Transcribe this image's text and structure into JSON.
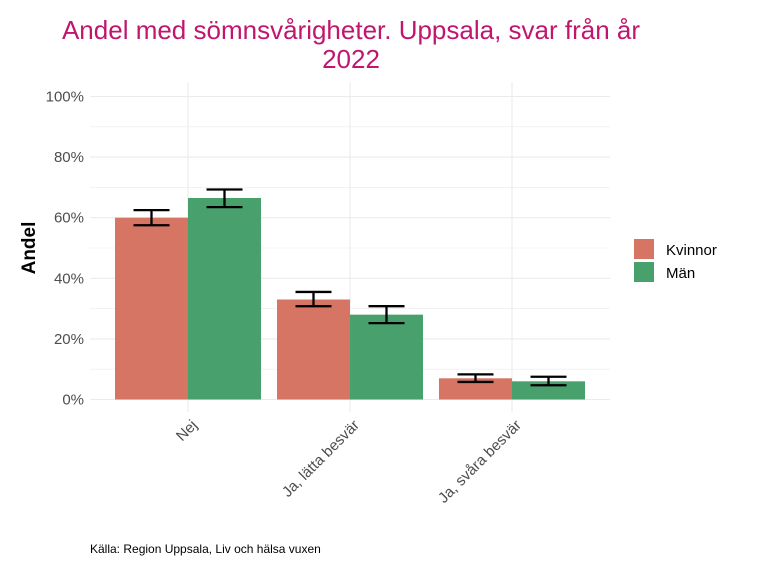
{
  "chart_data": {
    "type": "bar",
    "title_lines": [
      "Andel med sömnsvårigheter. Uppsala, svar från år",
      "2022"
    ],
    "xlabel": "",
    "ylabel": "Andel",
    "ylim": [
      0,
      1.0
    ],
    "y_ticks": [
      {
        "value": 0.0,
        "label": "0%"
      },
      {
        "value": 0.2,
        "label": "20%"
      },
      {
        "value": 0.4,
        "label": "40%"
      },
      {
        "value": 0.6,
        "label": "60%"
      },
      {
        "value": 0.8,
        "label": "80%"
      },
      {
        "value": 1.0,
        "label": "100%"
      }
    ],
    "categories": [
      "Nej",
      "Ja, lätta besvär",
      "Ja, svåra besvär"
    ],
    "series": [
      {
        "name": "Kvinnor",
        "color": "#d77565",
        "values": [
          0.6,
          0.33,
          0.07
        ],
        "ci_low": [
          0.575,
          0.308,
          0.058
        ],
        "ci_high": [
          0.625,
          0.355,
          0.083
        ]
      },
      {
        "name": "Män",
        "color": "#48a06c",
        "values": [
          0.665,
          0.28,
          0.06
        ],
        "ci_low": [
          0.635,
          0.252,
          0.047
        ],
        "ci_high": [
          0.693,
          0.308,
          0.075
        ]
      }
    ],
    "grid": true,
    "legend_position": "right",
    "caption": "Källa: Region Uppsala, Liv och hälsa vuxen"
  }
}
